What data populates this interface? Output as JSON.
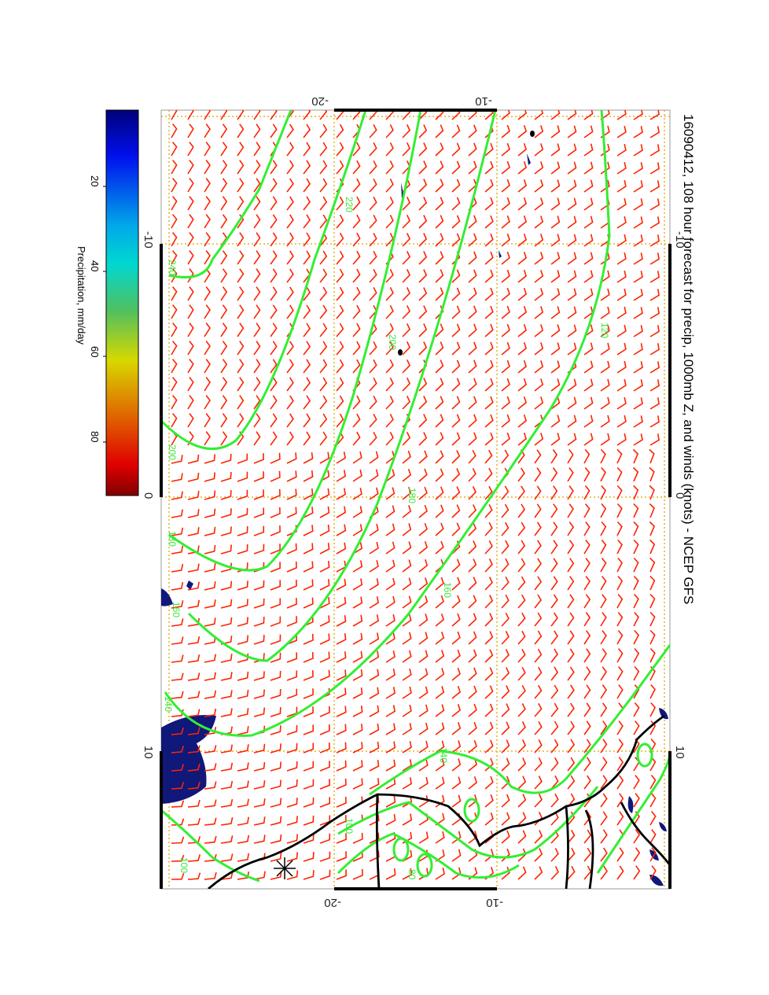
{
  "title": "16090412, 108 hour forecast for precip, 1000mb Z, and winds (knots) - NCEP GFS",
  "map": {
    "axis_top_ticks": [
      "-20",
      "-10"
    ],
    "axis_bottom_ticks": [
      "-20",
      "-10"
    ],
    "axis_left_ticks": [
      "-10",
      "0",
      "10"
    ],
    "axis_right_ticks": [
      "-10",
      "0",
      "10"
    ],
    "colors": {
      "contour": "#33ee33",
      "barb": "#ff2200",
      "coast": "#000000",
      "grid": "#e8b020",
      "precip": "#10187a"
    },
    "contour_labels": [
      "240",
      "220",
      "200",
      "200",
      "180",
      "180",
      "160",
      "160",
      "140",
      "140",
      "120",
      "100",
      "100",
      "80"
    ]
  },
  "colorbar": {
    "label": "Precipitation, mm/day",
    "ticks": [
      "20",
      "40",
      "60",
      "80"
    ],
    "colormap": "jet"
  }
}
